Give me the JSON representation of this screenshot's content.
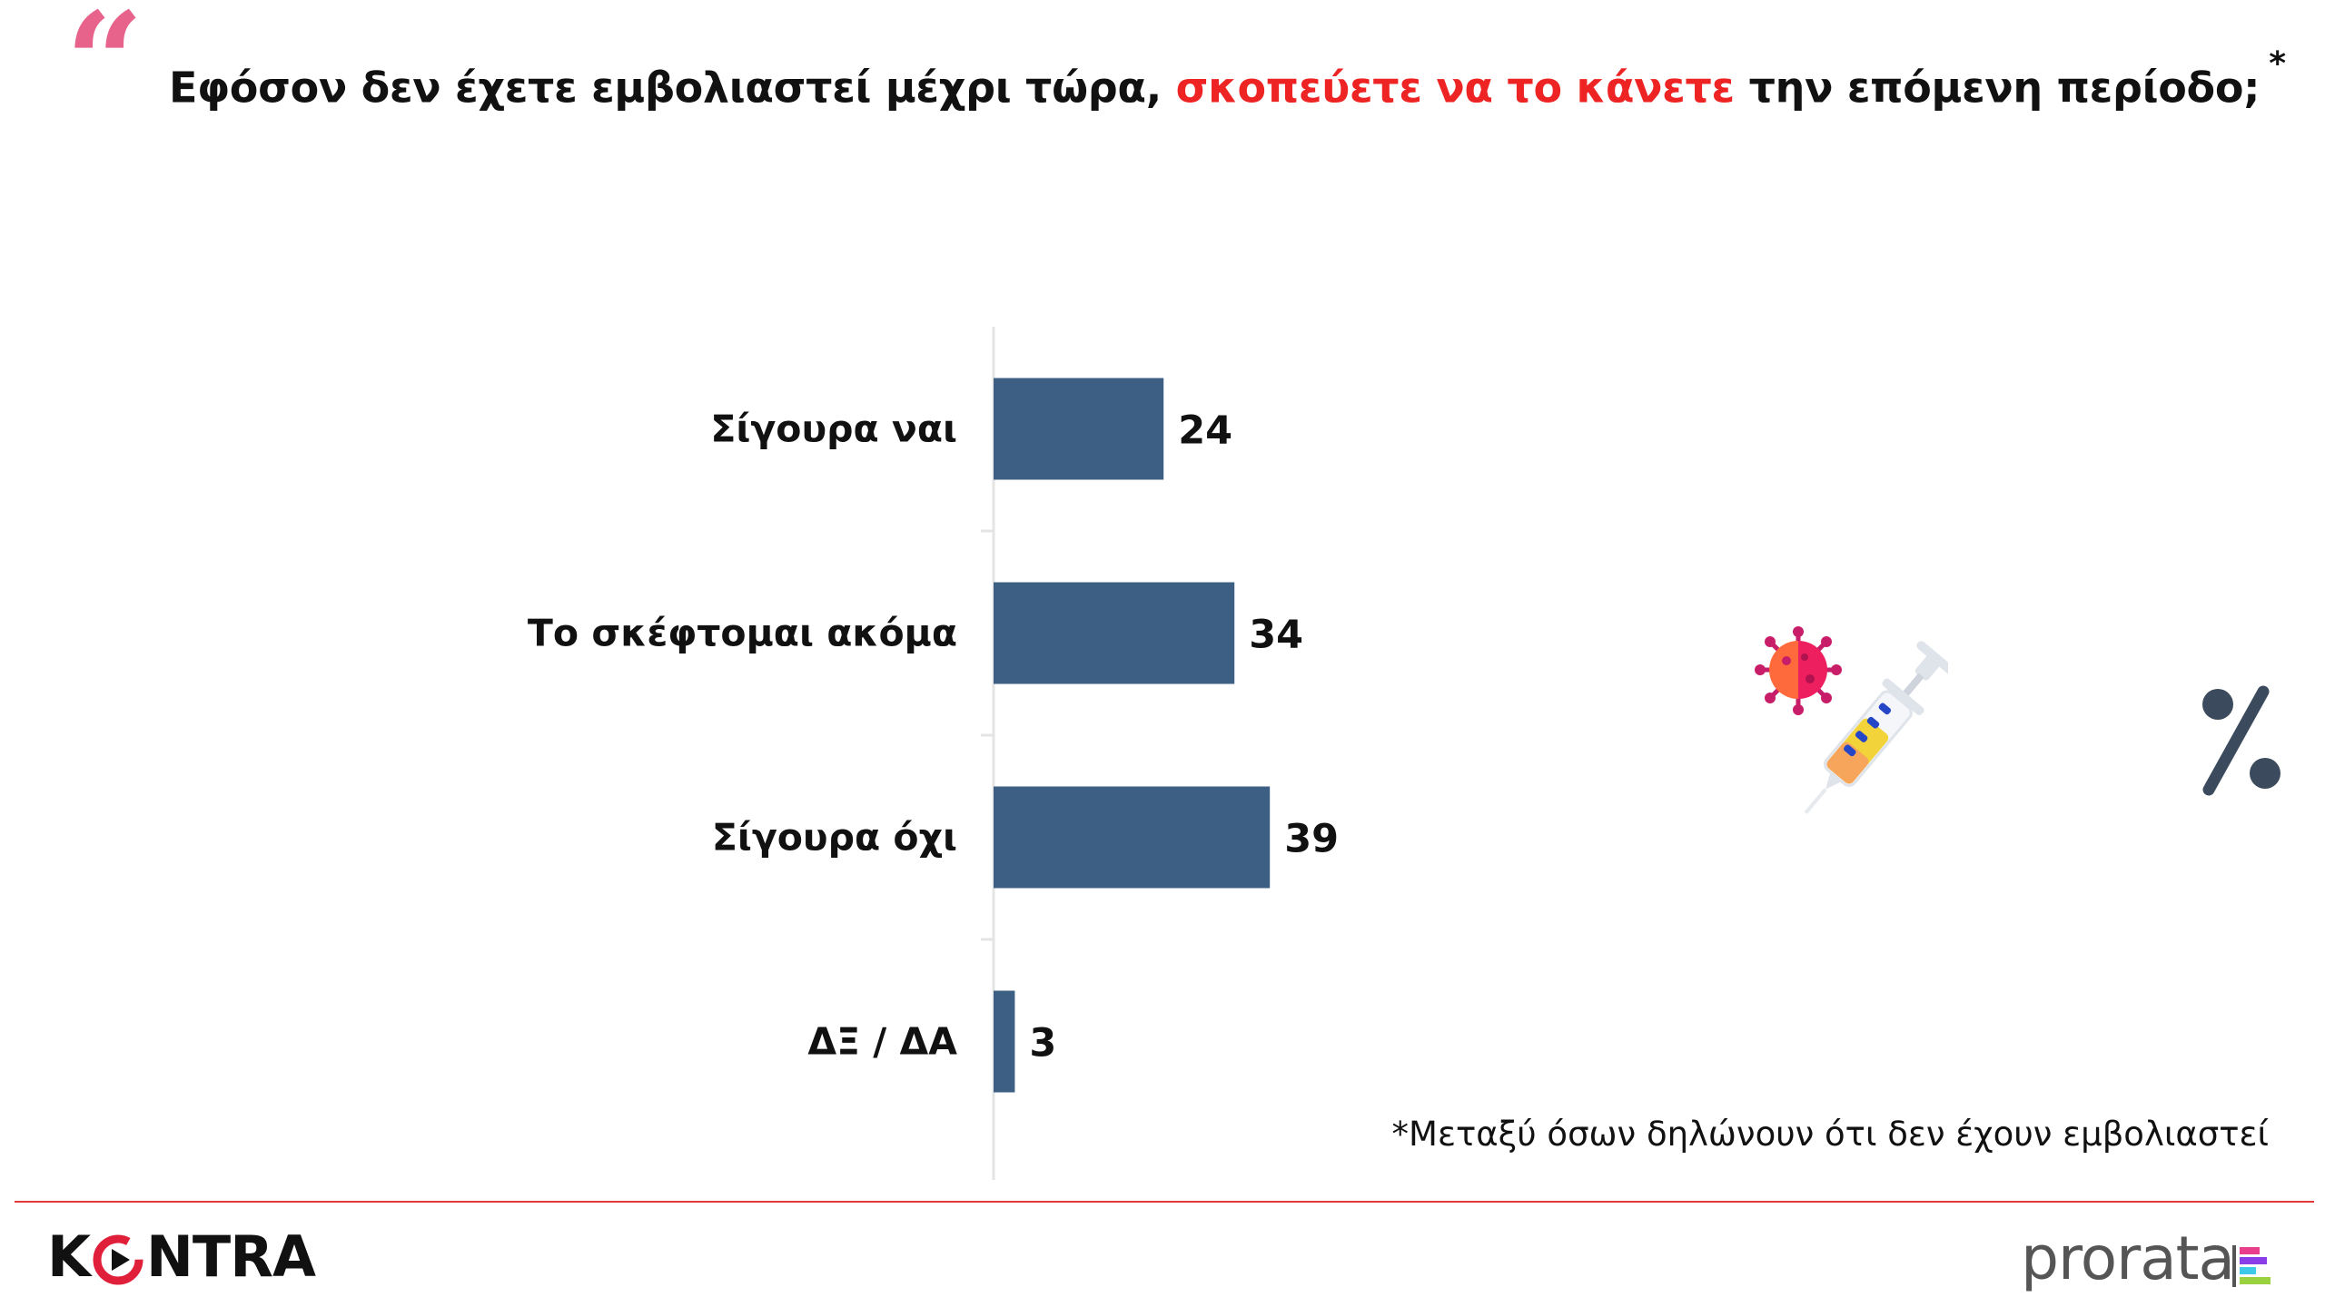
{
  "header": {
    "quote_glyph": "“",
    "question_before": "Εφόσον δεν έχετε εμβολιαστεί μέχρι τώρα, ",
    "question_highlight": "σκοπεύετε να το κάνετε",
    "question_after": " την επόμενη περίοδο;",
    "asterisk": "*"
  },
  "footnote": "*Μεταξύ όσων δηλώνουν ότι δεν έχουν εμβολιαστεί",
  "brands": {
    "left_pre": "K",
    "left_post": "NTRA",
    "right": "prorata"
  },
  "icons": [
    "virus-icon",
    "syringe-icon",
    "percent-icon",
    "quote-icon"
  ],
  "colors": {
    "bar": "#3d5f84",
    "highlight": "#ee2323",
    "quote": "#e8638c",
    "divider": "#e03a3a"
  },
  "chart_data": {
    "type": "bar",
    "orientation": "horizontal",
    "categories": [
      "Σίγουρα ναι",
      "Το σκέφτομαι ακόμα",
      "Σίγουρα όχι",
      "ΔΞ / ΔΑ"
    ],
    "values": [
      24,
      34,
      39,
      3
    ],
    "data_labels": [
      "24",
      "34",
      "39",
      "3"
    ],
    "title": "",
    "xlabel": "",
    "ylabel": "",
    "xlim": [
      0,
      100
    ],
    "grid": false,
    "legend": "none"
  }
}
